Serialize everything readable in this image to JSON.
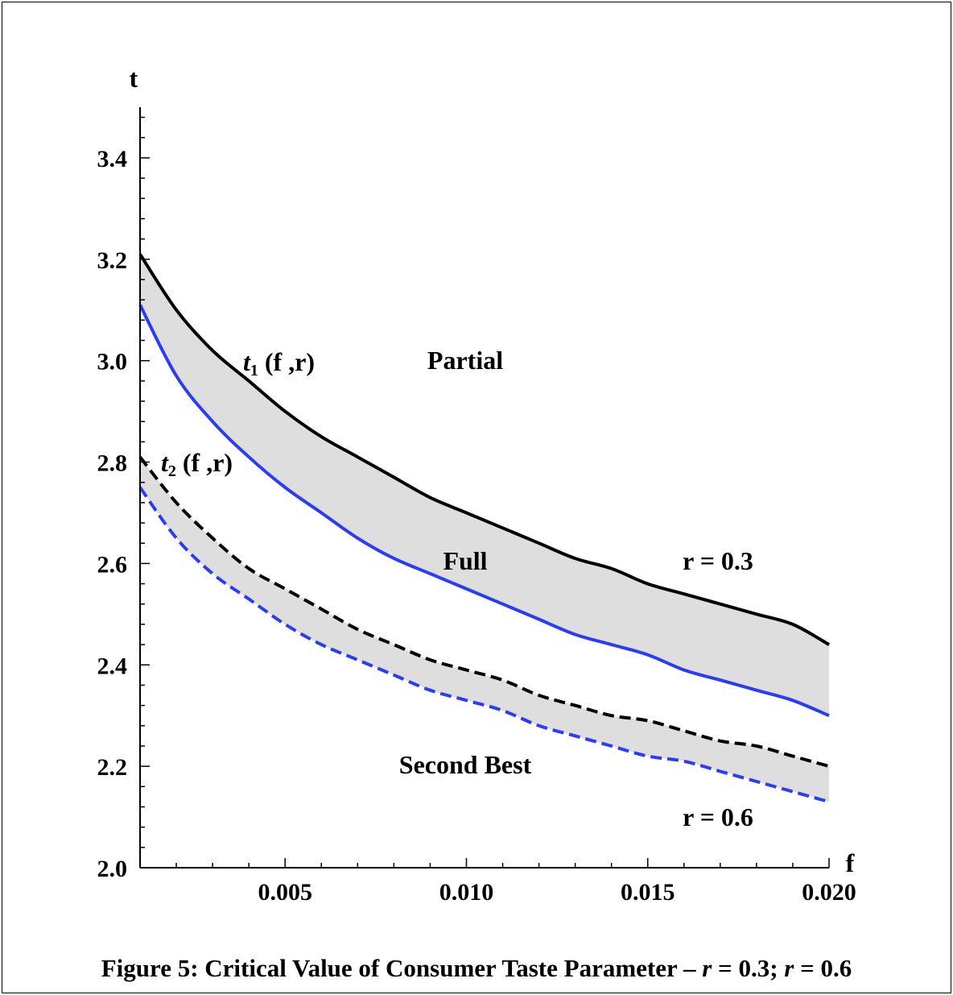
{
  "chart_data": {
    "type": "line",
    "xlabel": "f",
    "ylabel": "t",
    "xlim": [
      0.001,
      0.02
    ],
    "ylim": [
      2.0,
      3.5
    ],
    "x_ticks_major": [
      0.005,
      0.01,
      0.015,
      0.02
    ],
    "x_tick_labels": [
      "0.005",
      "0.010",
      "0.015",
      "0.020"
    ],
    "y_ticks_major": [
      2.0,
      2.2,
      2.4,
      2.6,
      2.8,
      3.0,
      3.2,
      3.4
    ],
    "y_tick_labels": [
      "2.0",
      "2.2",
      "2.4",
      "2.6",
      "2.8",
      "3.0",
      "3.2",
      "3.4"
    ],
    "grid": false,
    "x": [
      0.001,
      0.002,
      0.003,
      0.004,
      0.005,
      0.006,
      0.007,
      0.008,
      0.009,
      0.01,
      0.011,
      0.012,
      0.013,
      0.014,
      0.015,
      0.016,
      0.017,
      0.018,
      0.019,
      0.02
    ],
    "series": [
      {
        "color": "#000000",
        "dash": "solid",
        "values": [
          3.21,
          3.1,
          3.02,
          2.96,
          2.9,
          2.85,
          2.81,
          2.77,
          2.73,
          2.7,
          2.67,
          2.64,
          2.61,
          2.59,
          2.56,
          2.54,
          2.52,
          2.5,
          2.48,
          2.44
        ]
      },
      {
        "color": "#2a3cf5",
        "dash": "solid",
        "values": [
          3.11,
          2.97,
          2.88,
          2.81,
          2.75,
          2.7,
          2.65,
          2.61,
          2.58,
          2.55,
          2.52,
          2.49,
          2.46,
          2.44,
          2.42,
          2.39,
          2.37,
          2.35,
          2.33,
          2.3
        ]
      },
      {
        "color": "#000000",
        "dash": "dashed",
        "values": [
          2.81,
          2.72,
          2.65,
          2.59,
          2.55,
          2.51,
          2.47,
          2.44,
          2.41,
          2.39,
          2.37,
          2.34,
          2.32,
          2.3,
          2.29,
          2.27,
          2.25,
          2.24,
          2.22,
          2.2
        ]
      },
      {
        "color": "#2a3cf5",
        "dash": "dashed",
        "values": [
          2.75,
          2.65,
          2.58,
          2.53,
          2.48,
          2.44,
          2.41,
          2.38,
          2.35,
          2.33,
          2.31,
          2.28,
          2.26,
          2.24,
          2.22,
          2.21,
          2.19,
          2.17,
          2.15,
          2.13
        ]
      }
    ],
    "shaded_bands": [
      {
        "upper_series": 0,
        "lower_series": 1,
        "color": "#dedede"
      },
      {
        "upper_series": 2,
        "lower_series": 3,
        "color": "#dedede"
      }
    ],
    "annotations": {
      "partial": "Partial",
      "full": "Full",
      "second_best": "Second Best",
      "r_top": "r = 0.3",
      "r_bottom": "r = 0.6",
      "t1_symbol": "t",
      "t1_subscript": "1",
      "t1_args": " (f ,r)",
      "t2_symbol": "t",
      "t2_subscript": "2",
      "t2_args": " (f ,r)"
    }
  },
  "caption": {
    "prefix": "Figure 5: Critical Value of Consumer Taste Parameter – ",
    "r1_symbol": "r",
    "r1_value": " = 0.3; ",
    "r2_symbol": "r",
    "r2_value": " = 0.6"
  }
}
